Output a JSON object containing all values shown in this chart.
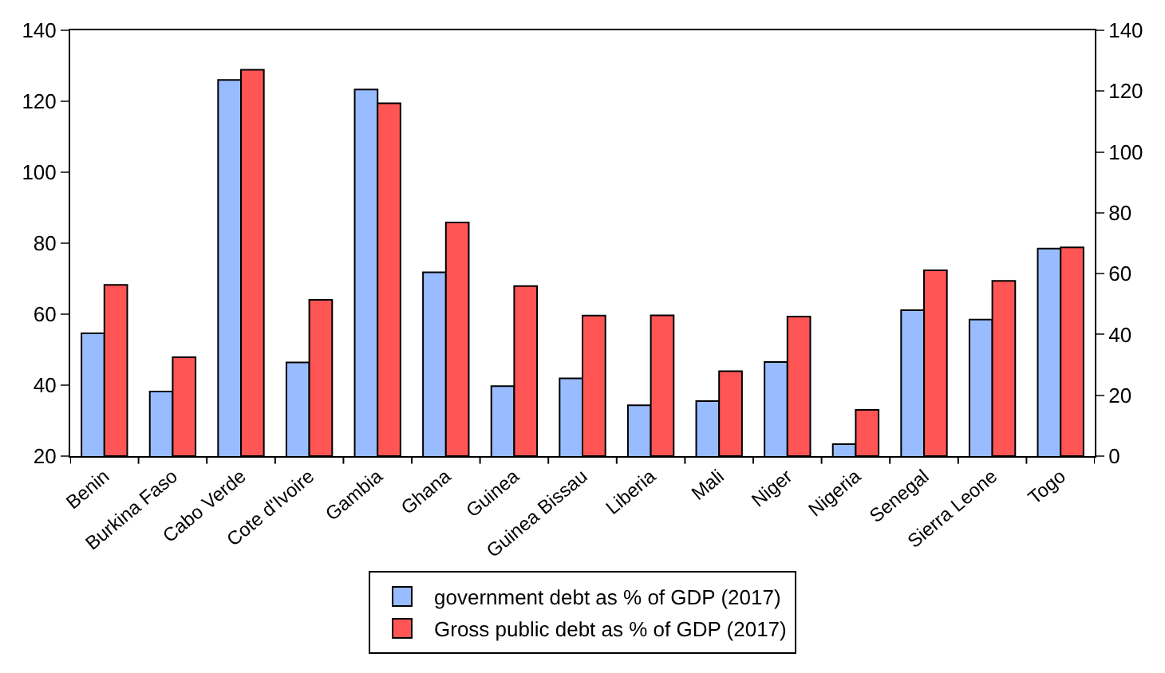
{
  "chart_data": {
    "type": "bar",
    "categories": [
      "Benin",
      "Burkina Faso",
      "Cabo Verde",
      "Cote d'Ivoire",
      "Gambia",
      "Ghana",
      "Guinea",
      "Guinea Bissau",
      "Liberia",
      "Mali",
      "Niger",
      "Nigeria",
      "Senegal",
      "Sierra Leone",
      "Togo"
    ],
    "series": [
      {
        "name": "government debt as % of GDP (2017)",
        "color": "#99bbff",
        "values": [
          54.6,
          38.2,
          126.0,
          46.4,
          123.3,
          71.8,
          39.7,
          41.9,
          34.3,
          35.5,
          46.5,
          23.4,
          61.1,
          58.5,
          78.5
        ]
      },
      {
        "name": "Gross public debt as % of GDP (2017)",
        "color": "#ff5555",
        "axis": "y2",
        "values": [
          56.3,
          32.5,
          127.0,
          51.4,
          116.0,
          76.8,
          55.9,
          46.2,
          46.3,
          27.9,
          45.9,
          15.2,
          61.1,
          57.6,
          68.6
        ]
      }
    ],
    "ylim": [
      20,
      140
    ],
    "yticks": [
      20,
      40,
      60,
      80,
      100,
      120,
      140
    ],
    "y2lim": [
      0,
      140
    ],
    "y2ticks": [
      0,
      20,
      40,
      60,
      80,
      100,
      120,
      140
    ],
    "grid": false,
    "legend": "bottom"
  }
}
